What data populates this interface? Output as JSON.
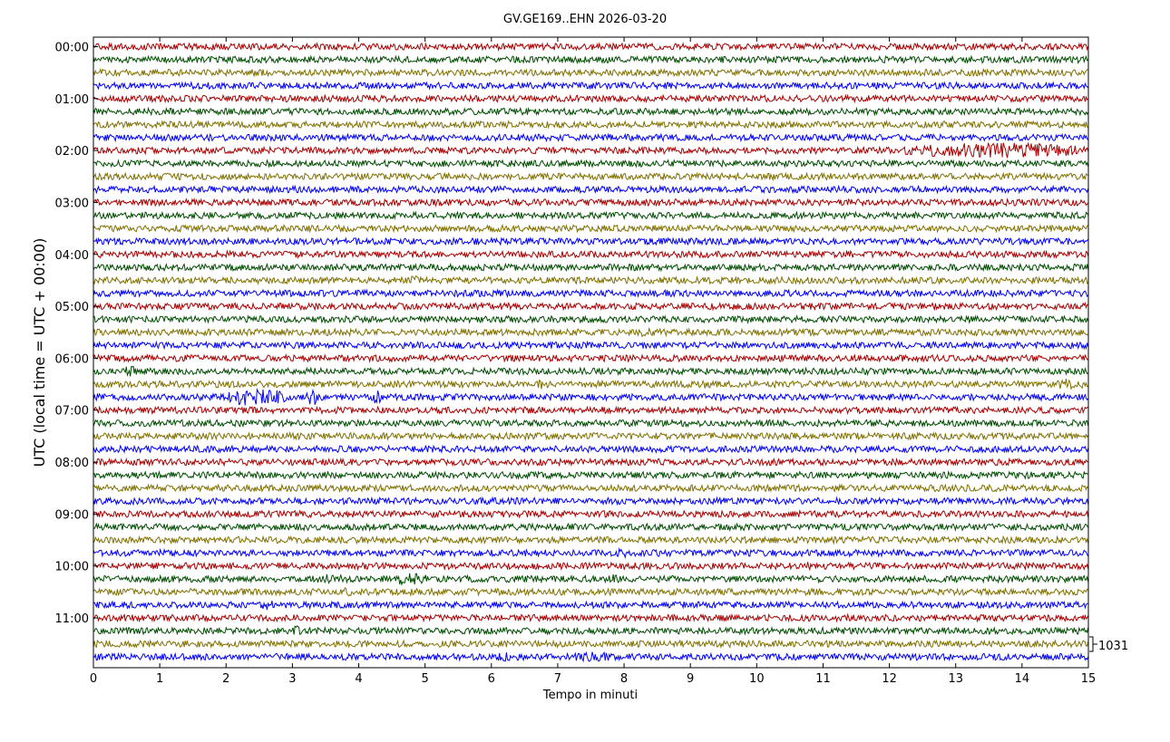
{
  "chart_data": {
    "type": "line",
    "title": "GV.GE169..EHN 2026-03-20",
    "xlabel": "Tempo in minuti",
    "ylabel": "UTC (local time = UTC + 00:00)",
    "xlim": [
      0,
      15
    ],
    "x_ticks": [
      "0",
      "1",
      "2",
      "3",
      "4",
      "5",
      "6",
      "7",
      "8",
      "9",
      "10",
      "11",
      "12",
      "13",
      "14",
      "15"
    ],
    "y_tick_labels": [
      "00:00",
      "01:00",
      "02:00",
      "03:00",
      "04:00",
      "05:00",
      "06:00",
      "07:00",
      "08:00",
      "09:00",
      "10:00",
      "11:00"
    ],
    "trace_count": 48,
    "trace_interval_minutes": 15,
    "color_cycle": [
      "#a80000",
      "#004d00",
      "#807000",
      "#0000ff"
    ],
    "scale_label": "1031",
    "events": [
      {
        "trace_start": "02:00",
        "x_from": 12.2,
        "x_to": 15.0,
        "strength": 2.4
      },
      {
        "trace_start": "04:30",
        "x_from": 4.6,
        "x_to": 5.0,
        "strength": 1.6
      },
      {
        "trace_start": "05:30",
        "x_from": 8.1,
        "x_to": 8.5,
        "strength": 1.3
      },
      {
        "trace_start": "06:15",
        "x_from": 0.4,
        "x_to": 0.7,
        "strength": 1.7
      },
      {
        "trace_start": "06:30",
        "x_from": 6.6,
        "x_to": 6.9,
        "strength": 1.5
      },
      {
        "trace_start": "06:30",
        "x_from": 9.1,
        "x_to": 9.4,
        "strength": 1.4
      },
      {
        "trace_start": "06:30",
        "x_from": 14.5,
        "x_to": 15.0,
        "strength": 1.9
      },
      {
        "trace_start": "06:45",
        "x_from": 2.0,
        "x_to": 2.9,
        "strength": 2.8
      },
      {
        "trace_start": "06:45",
        "x_from": 3.2,
        "x_to": 3.4,
        "strength": 2.6
      },
      {
        "trace_start": "06:45",
        "x_from": 4.2,
        "x_to": 4.35,
        "strength": 2.2
      },
      {
        "trace_start": "09:45",
        "x_from": 7.8,
        "x_to": 8.1,
        "strength": 1.5
      },
      {
        "trace_start": "10:00",
        "x_from": 10.6,
        "x_to": 11.0,
        "strength": 1.3
      },
      {
        "trace_start": "10:15",
        "x_from": 3.3,
        "x_to": 3.9,
        "strength": 1.6
      },
      {
        "trace_start": "10:15",
        "x_from": 4.4,
        "x_to": 5.1,
        "strength": 1.8
      },
      {
        "trace_start": "10:15",
        "x_from": 7.7,
        "x_to": 8.0,
        "strength": 1.5
      },
      {
        "trace_start": "10:30",
        "x_from": 3.6,
        "x_to": 4.0,
        "strength": 1.3
      },
      {
        "trace_start": "10:45",
        "x_from": 2.4,
        "x_to": 2.8,
        "strength": 1.5
      },
      {
        "trace_start": "11:15",
        "x_from": 3.0,
        "x_to": 3.15,
        "strength": 1.7
      },
      {
        "trace_start": "11:45",
        "x_from": 6.0,
        "x_to": 6.4,
        "strength": 1.4
      },
      {
        "trace_start": "11:45",
        "x_from": 7.1,
        "x_to": 7.9,
        "strength": 1.5
      }
    ]
  }
}
